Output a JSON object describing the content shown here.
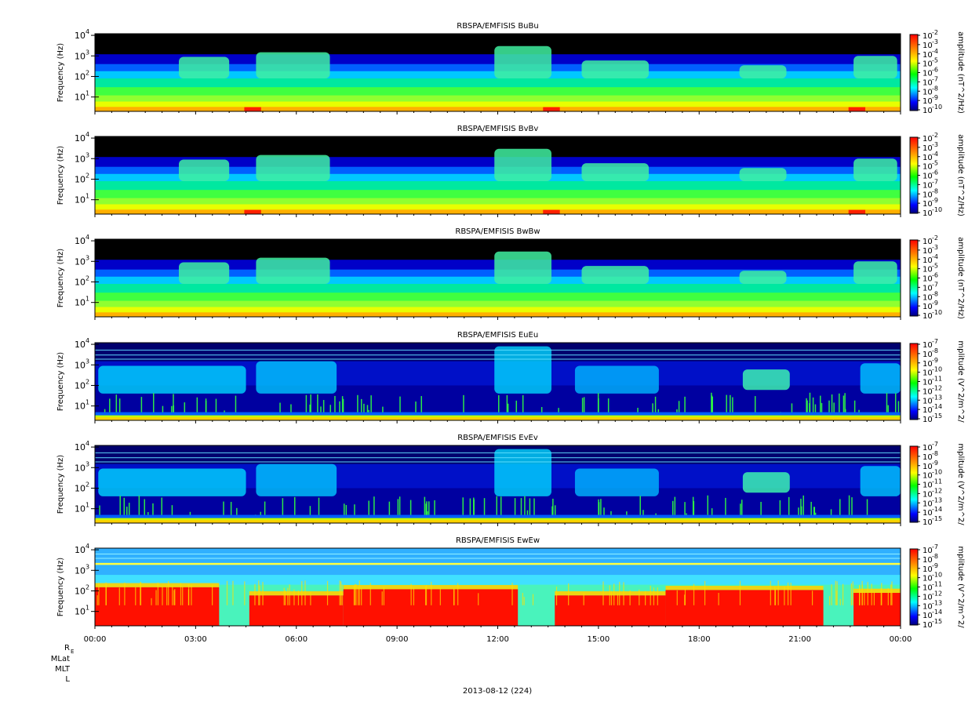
{
  "chart_data": {
    "type": "heatmap",
    "x_tick_labels": [
      "00:00",
      "03:00",
      "06:00",
      "09:00",
      "12:00",
      "15:00",
      "18:00",
      "21:00",
      "00:00"
    ],
    "x_range_hours": [
      0,
      24
    ],
    "date_label": "2013-08-12 (224)",
    "orbit_labels": [
      "R",
      "MLat",
      "MLT",
      "L"
    ],
    "orbit_label_subscript": "E",
    "panels": [
      {
        "title": "RBSPA/EMFISIS  BuBu",
        "ylabel": "Frequency (Hz)",
        "yticks": [
          "10",
          "10",
          "10",
          "10"
        ],
        "ytick_exponents": [
          "1",
          "2",
          "3",
          "4"
        ],
        "ylog": true,
        "yrange_hz": [
          2,
          12000
        ],
        "colorbar_label": "amplitude (nT^2/Hz)",
        "colorbar_exponents": [
          "-2",
          "-3",
          "-4",
          "-5",
          "-6",
          "-7",
          "-8",
          "-9",
          "-10"
        ],
        "colorbar_range": [
          1e-10,
          0.01
        ],
        "kind": "B"
      },
      {
        "title": "RBSPA/EMFISIS  BvBv",
        "ylabel": "Frequency (Hz)",
        "yticks": [
          "10",
          "10",
          "10",
          "10"
        ],
        "ytick_exponents": [
          "1",
          "2",
          "3",
          "4"
        ],
        "ylog": true,
        "yrange_hz": [
          2,
          12000
        ],
        "colorbar_label": "amplitude (nT^2/Hz)",
        "colorbar_exponents": [
          "-2",
          "-3",
          "-4",
          "-5",
          "-6",
          "-7",
          "-8",
          "-9",
          "-10"
        ],
        "colorbar_range": [
          1e-10,
          0.01
        ],
        "kind": "B"
      },
      {
        "title": "RBSPA/EMFISIS  BwBw",
        "ylabel": "Frequency (Hz)",
        "yticks": [
          "10",
          "10",
          "10",
          "10"
        ],
        "ytick_exponents": [
          "1",
          "2",
          "3",
          "4"
        ],
        "ylog": true,
        "yrange_hz": [
          2,
          12000
        ],
        "colorbar_label": "amplitude (nT^2/Hz)",
        "colorbar_exponents": [
          "-2",
          "-3",
          "-4",
          "-5",
          "-6",
          "-7",
          "-8",
          "-9",
          "-10"
        ],
        "colorbar_range": [
          1e-10,
          0.01
        ],
        "kind": "Bw"
      },
      {
        "title": "RBSPA/EMFISIS  EuEu",
        "ylabel": "Frequency (Hz)",
        "yticks": [
          "10",
          "10",
          "10",
          "10"
        ],
        "ytick_exponents": [
          "1",
          "2",
          "3",
          "4"
        ],
        "ylog": true,
        "yrange_hz": [
          2,
          12000
        ],
        "colorbar_label": "mplitude (V^2/m^2/",
        "colorbar_exponents": [
          "-7",
          "-8",
          "-9",
          "-10",
          "-11",
          "-12",
          "-13",
          "-14",
          "-15"
        ],
        "colorbar_range": [
          1e-15,
          1e-07
        ],
        "kind": "E"
      },
      {
        "title": "RBSPA/EMFISIS  EvEv",
        "ylabel": "Frequency (Hz)",
        "yticks": [
          "10",
          "10",
          "10",
          "10"
        ],
        "ytick_exponents": [
          "1",
          "2",
          "3",
          "4"
        ],
        "ylog": true,
        "yrange_hz": [
          2,
          12000
        ],
        "colorbar_label": "mplitude (V^2/m^2/",
        "colorbar_exponents": [
          "-7",
          "-8",
          "-9",
          "-10",
          "-11",
          "-12",
          "-13",
          "-14",
          "-15"
        ],
        "colorbar_range": [
          1e-15,
          1e-07
        ],
        "kind": "E"
      },
      {
        "title": "RBSPA/EMFISIS  EwEw",
        "ylabel": "Frequency (Hz)",
        "yticks": [
          "10",
          "10",
          "10",
          "10"
        ],
        "ytick_exponents": [
          "1",
          "2",
          "3",
          "4"
        ],
        "ylog": true,
        "yrange_hz": [
          2,
          12000
        ],
        "colorbar_label": "mplitude (V^2/m^2/",
        "colorbar_exponents": [
          "-7",
          "-8",
          "-9",
          "-10",
          "-11",
          "-12",
          "-13",
          "-14",
          "-15"
        ],
        "colorbar_range": [
          1e-15,
          1e-07
        ],
        "kind": "Ew"
      }
    ]
  }
}
